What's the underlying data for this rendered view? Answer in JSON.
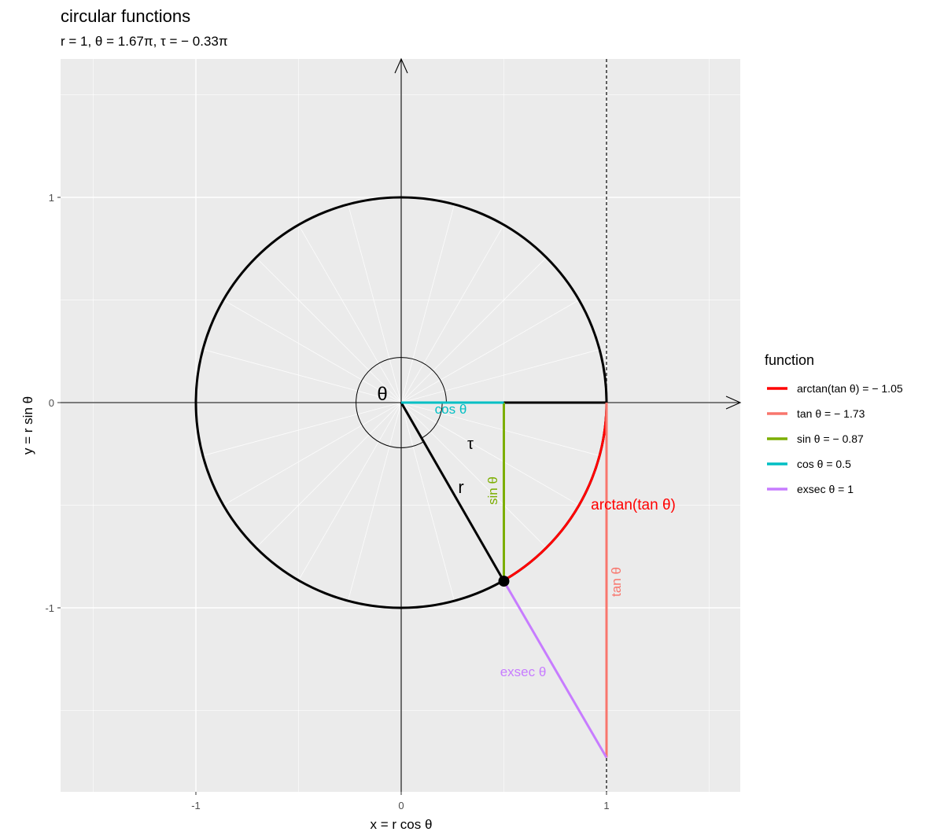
{
  "chart_data": {
    "type": "line",
    "title": "circular functions",
    "subtitle": "r = 1, θ = 1.67π, τ = − 0.33π",
    "xlabel": "x = r cos θ",
    "ylabel": "y = r sin θ",
    "xlim": [
      -1.65,
      1.65
    ],
    "ylim": [
      -1.9,
      1.65
    ],
    "x_ticks": [
      -1,
      0,
      1
    ],
    "x_tick_labels": [
      "-1",
      "0",
      "1"
    ],
    "y_ticks": [
      -1,
      0,
      1
    ],
    "y_tick_labels": [
      "-1",
      "0",
      "1"
    ],
    "grid": true,
    "r": 1,
    "theta_pi": 1.67,
    "tau_pi": -0.33,
    "point": {
      "x": 0.5,
      "y": -0.87
    },
    "legend": {
      "title": "function",
      "placement": "right",
      "entries": [
        {
          "label": "arctan(tan θ) = − 1.05",
          "color": "#ff0000"
        },
        {
          "label": "tan θ = − 1.73",
          "color": "#f8766d"
        },
        {
          "label": "sin θ = − 0.87",
          "color": "#7cae00"
        },
        {
          "label": "cos θ = 0.5",
          "color": "#00bfc4"
        },
        {
          "label": "exsec θ = 1",
          "color": "#c77cff"
        }
      ]
    },
    "series": [
      {
        "name": "arctan(tan θ)",
        "color": "#ff0000",
        "kind": "arc",
        "from_angle": -1.05,
        "to_angle": 0,
        "value": -1.05
      },
      {
        "name": "tan θ",
        "color": "#f8766d",
        "x": [
          1,
          1
        ],
        "y": [
          0,
          -1.73
        ],
        "value": -1.73
      },
      {
        "name": "sin θ",
        "color": "#7cae00",
        "x": [
          0.5,
          0.5
        ],
        "y": [
          0,
          -0.87
        ],
        "value": -0.87
      },
      {
        "name": "cos θ",
        "color": "#00bfc4",
        "x": [
          0,
          0.5
        ],
        "y": [
          0,
          0
        ],
        "value": 0.5
      },
      {
        "name": "exsec θ",
        "color": "#c77cff",
        "x": [
          0.5,
          1
        ],
        "y": [
          -0.87,
          -1.73
        ],
        "value": 1
      }
    ],
    "annotations": {
      "theta": "θ",
      "tau": "τ",
      "r": "r",
      "cos": "cos θ",
      "sin": "sin θ",
      "arctan": "arctan(tan θ)",
      "tan": "tan θ",
      "exsec": "exsec θ"
    },
    "colors": {
      "panel": "#ebebeb",
      "grid": "#ffffff",
      "ink": "#000000"
    }
  }
}
